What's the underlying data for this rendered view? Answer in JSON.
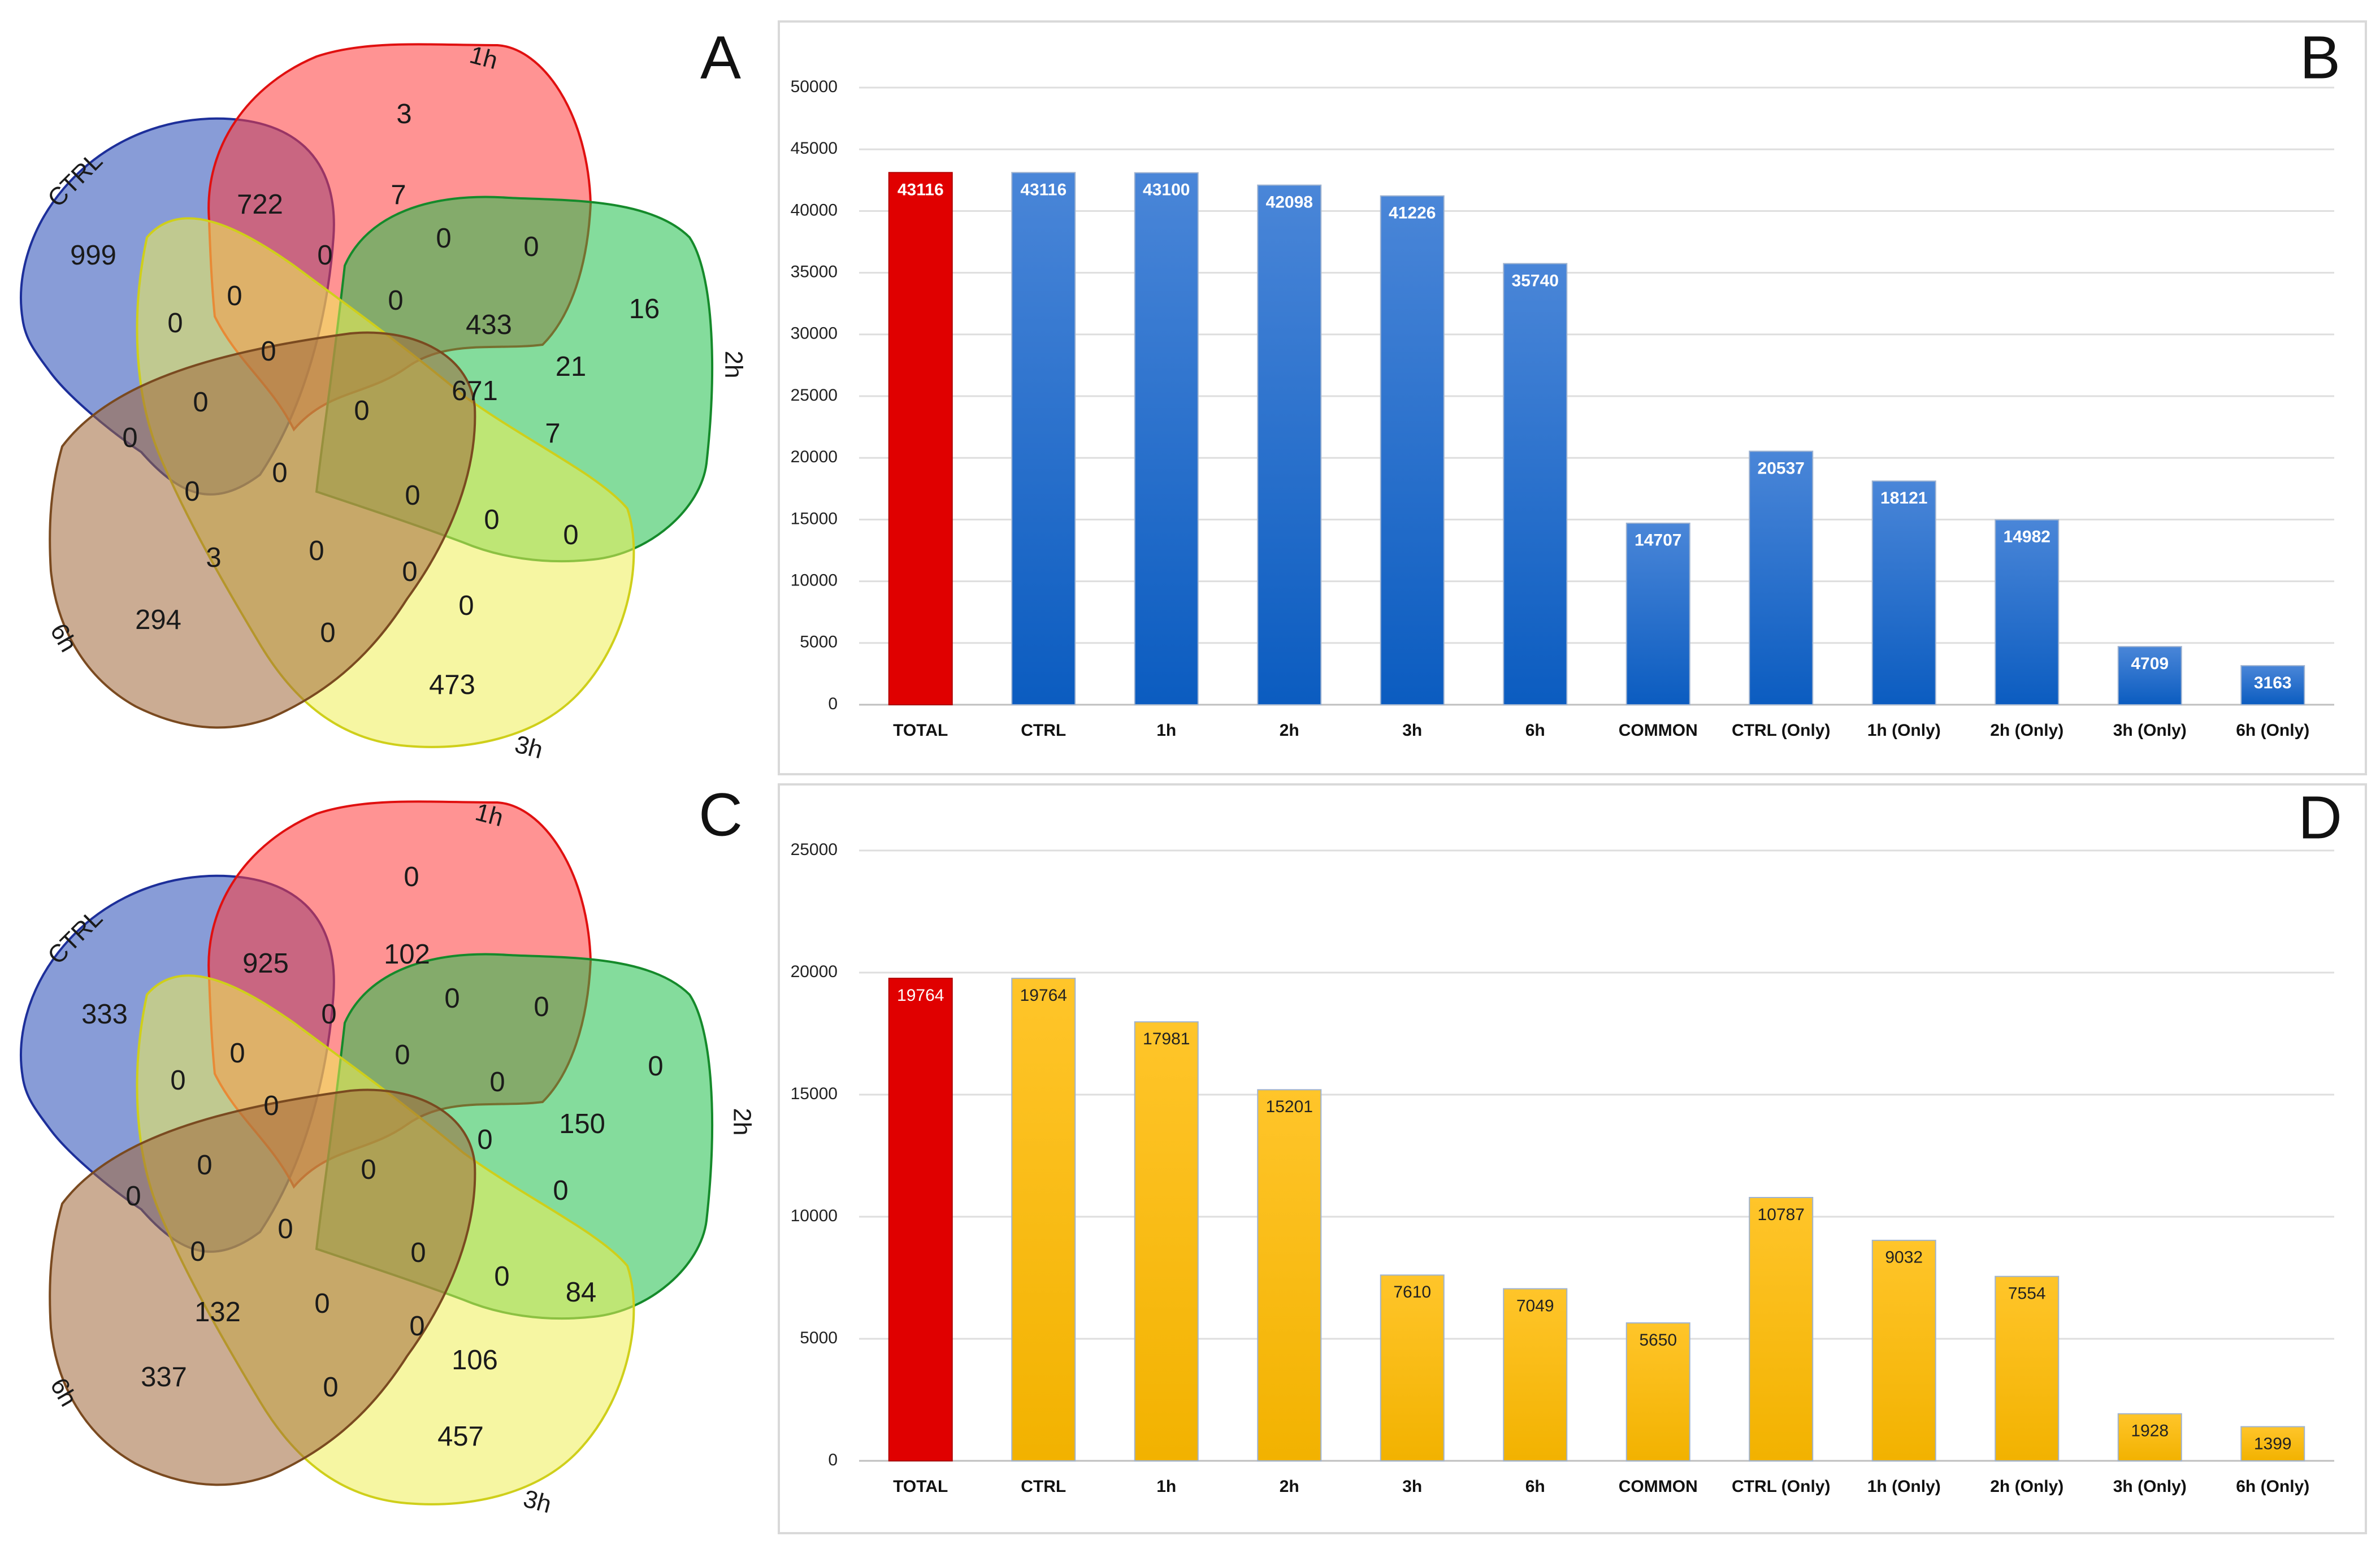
{
  "panels": {
    "A": "A",
    "B": "B",
    "C": "C",
    "D": "D"
  },
  "venn_sets": {
    "ctrl": "CTRL",
    "h1": "1h",
    "h2": "2h",
    "h3": "3h",
    "h6": "6h",
    "colors": {
      "ctrl": "#3f5fbf",
      "h1": "#ff3b3b",
      "h2": "#1fbf4a",
      "h3": "#eeee55",
      "h6": "#a0683a"
    }
  },
  "venn_A": {
    "ctrl_only": "999",
    "h1_only": "3",
    "h2_only": "16",
    "h3_only": "473",
    "h6_only": "294",
    "r_722": "722",
    "r_7a": "7",
    "r_0a": "0",
    "r_0b": "0",
    "r_0c": "0",
    "r_0d": "0",
    "r_0e": "0",
    "r_0f": "0",
    "r_0g": "0",
    "r_433": "433",
    "r_21": "21",
    "r_671": "671",
    "r_7b": "7",
    "r_0h": "0",
    "r_0i": "0",
    "r_0j": "0",
    "r_0k": "0",
    "r_0l": "0",
    "r_0m": "0",
    "r_0n": "0",
    "r_3": "3",
    "r_0o": "0",
    "r_0p": "0",
    "r_0q": "0",
    "r_0r": "0"
  },
  "venn_C": {
    "ctrl_only": "333",
    "h1_only": "0",
    "h2_only": "0",
    "h3_only": "457",
    "h6_only": "337",
    "r_925": "925",
    "r_102": "102",
    "r_0a": "0",
    "r_0b": "0",
    "r_0c": "0",
    "r_0d": "0",
    "r_0e": "0",
    "r_0f": "0",
    "r_0g": "0",
    "r_0h": "0",
    "r_150": "150",
    "r_0i": "0",
    "r_0j": "0",
    "r_0k": "0",
    "r_0l": "0",
    "r_0m": "0",
    "r_0n": "0",
    "r_0o": "0",
    "r_0p": "0",
    "r_84": "84",
    "r_132": "132",
    "r_0q": "0",
    "r_0r": "0",
    "r_106": "106",
    "r_0s": "0"
  },
  "chart_data": [
    {
      "panel": "B",
      "type": "bar",
      "categories": [
        "TOTAL",
        "CTRL",
        "1h",
        "2h",
        "3h",
        "6h",
        "COMMON",
        "CTRL (Only)",
        "1h (Only)",
        "2h (Only)",
        "3h (Only)",
        "6h (Only)"
      ],
      "values": [
        43116,
        43116,
        43100,
        42098,
        41226,
        35740,
        14707,
        20537,
        18121,
        14982,
        4709,
        3163
      ],
      "value_labels": [
        "43116",
        "43116",
        "43100",
        "42098",
        "41226",
        "35740",
        "14707",
        "20537",
        "18121",
        "14982",
        "4709",
        "3163"
      ],
      "ylim": [
        0,
        50000
      ],
      "yticks": [
        0,
        5000,
        10000,
        15000,
        20000,
        25000,
        30000,
        35000,
        40000,
        45000,
        50000
      ],
      "ytick_labels": [
        "0",
        "5000",
        "10000",
        "15000",
        "20000",
        "25000",
        "30000",
        "35000",
        "40000",
        "45000",
        "50000"
      ],
      "bar_colors": {
        "highlight": "#e00000",
        "top": "#4a86d8",
        "bottom": "#0b5cc0"
      },
      "label_color": "#ffffff",
      "grid": true
    },
    {
      "panel": "D",
      "type": "bar",
      "categories": [
        "TOTAL",
        "CTRL",
        "1h",
        "2h",
        "3h",
        "6h",
        "COMMON",
        "CTRL (Only)",
        "1h (Only)",
        "2h (Only)",
        "3h (Only)",
        "6h (Only)"
      ],
      "values": [
        19764,
        19764,
        17981,
        15201,
        7610,
        7049,
        5650,
        10787,
        9032,
        7554,
        1928,
        1399
      ],
      "value_labels": [
        "19764",
        "19764",
        "17981",
        "15201",
        "7610",
        "7049",
        "5650",
        "10787",
        "9032",
        "7554",
        "1928",
        "1399"
      ],
      "ylim": [
        0,
        25000
      ],
      "yticks": [
        0,
        5000,
        10000,
        15000,
        20000,
        25000
      ],
      "ytick_labels": [
        "0",
        "5000",
        "10000",
        "15000",
        "20000",
        "25000"
      ],
      "bar_colors": {
        "highlight": "#e00000",
        "top": "#ffc52a",
        "bottom": "#f2b200"
      },
      "label_color": "#222222",
      "grid": true
    }
  ]
}
